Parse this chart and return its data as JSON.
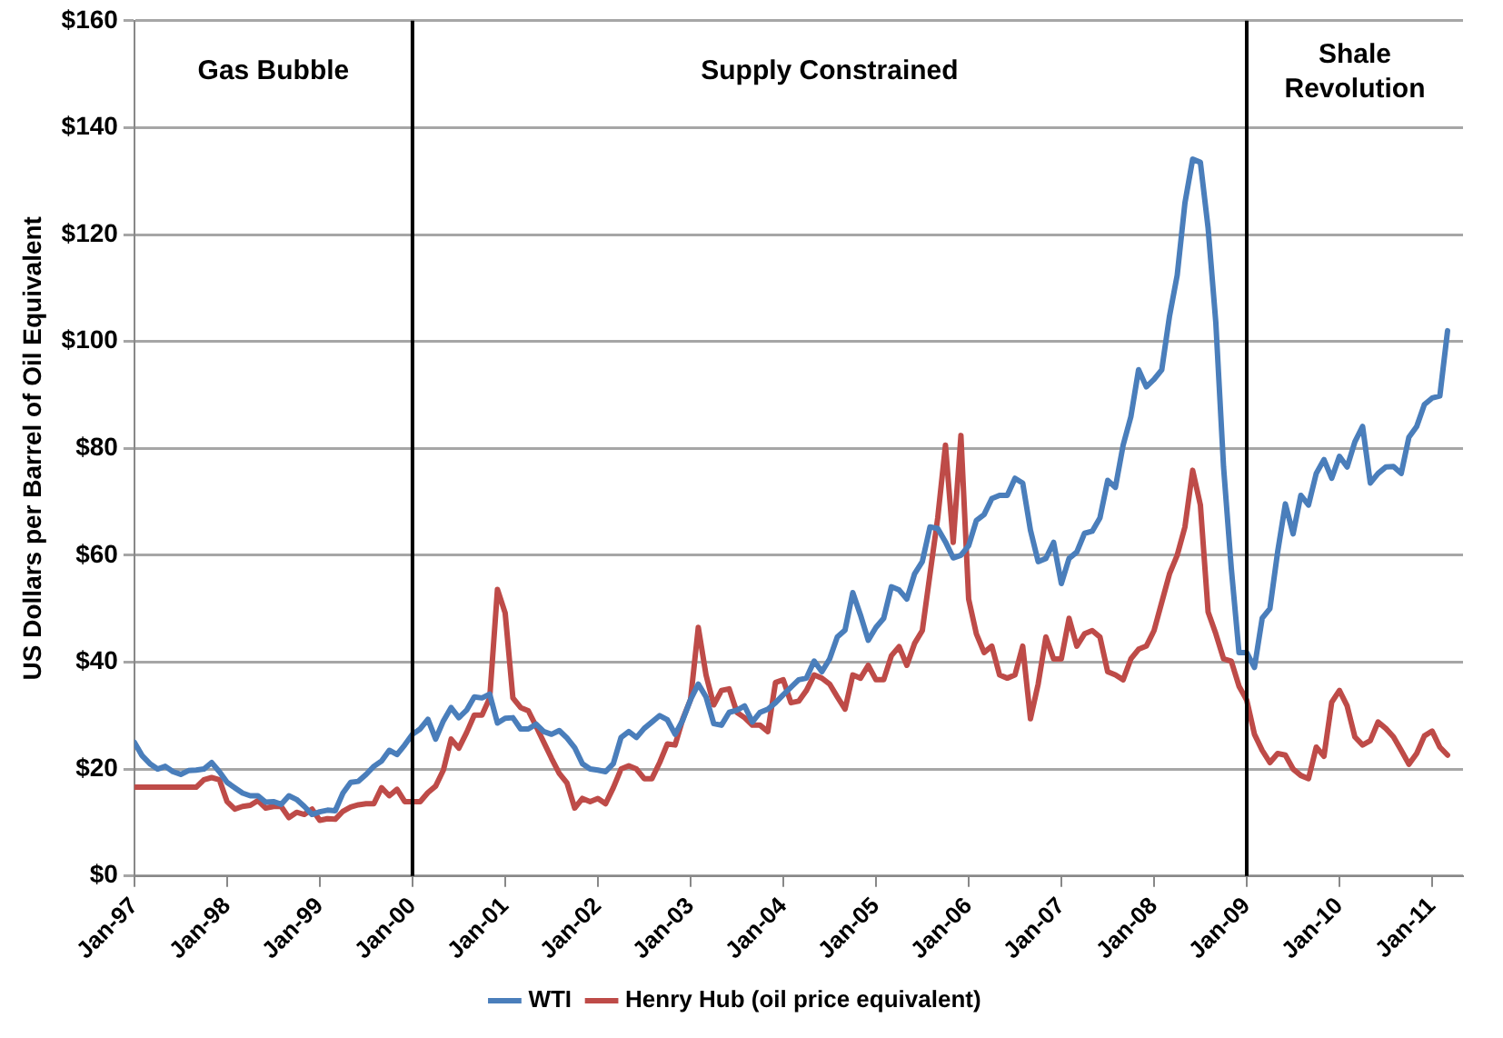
{
  "chart_data": {
    "type": "line",
    "ylabel": "US Dollars per Barrel of Oil Equivalent",
    "x": [
      "1997-01",
      "1997-02",
      "1997-03",
      "1997-04",
      "1997-05",
      "1997-06",
      "1997-07",
      "1997-08",
      "1997-09",
      "1997-10",
      "1997-11",
      "1997-12",
      "1998-01",
      "1998-02",
      "1998-03",
      "1998-04",
      "1998-05",
      "1998-06",
      "1998-07",
      "1998-08",
      "1998-09",
      "1998-10",
      "1998-11",
      "1998-12",
      "1999-01",
      "1999-02",
      "1999-03",
      "1999-04",
      "1999-05",
      "1999-06",
      "1999-07",
      "1999-08",
      "1999-09",
      "1999-10",
      "1999-11",
      "1999-12",
      "2000-01",
      "2000-02",
      "2000-03",
      "2000-04",
      "2000-05",
      "2000-06",
      "2000-07",
      "2000-08",
      "2000-09",
      "2000-10",
      "2000-11",
      "2000-12",
      "2001-01",
      "2001-02",
      "2001-03",
      "2001-04",
      "2001-05",
      "2001-06",
      "2001-07",
      "2001-08",
      "2001-09",
      "2001-10",
      "2001-11",
      "2001-12",
      "2002-01",
      "2002-02",
      "2002-03",
      "2002-04",
      "2002-05",
      "2002-06",
      "2002-07",
      "2002-08",
      "2002-09",
      "2002-10",
      "2002-11",
      "2002-12",
      "2003-01",
      "2003-02",
      "2003-03",
      "2003-04",
      "2003-05",
      "2003-06",
      "2003-07",
      "2003-08",
      "2003-09",
      "2003-10",
      "2003-11",
      "2003-12",
      "2004-01",
      "2004-02",
      "2004-03",
      "2004-04",
      "2004-05",
      "2004-06",
      "2004-07",
      "2004-08",
      "2004-09",
      "2004-10",
      "2004-11",
      "2004-12",
      "2005-01",
      "2005-02",
      "2005-03",
      "2005-04",
      "2005-05",
      "2005-06",
      "2005-07",
      "2005-08",
      "2005-09",
      "2005-10",
      "2005-11",
      "2005-12",
      "2006-01",
      "2006-02",
      "2006-03",
      "2006-04",
      "2006-05",
      "2006-06",
      "2006-07",
      "2006-08",
      "2006-09",
      "2006-10",
      "2006-11",
      "2006-12",
      "2007-01",
      "2007-02",
      "2007-03",
      "2007-04",
      "2007-05",
      "2007-06",
      "2007-07",
      "2007-08",
      "2007-09",
      "2007-10",
      "2007-11",
      "2007-12",
      "2008-01",
      "2008-02",
      "2008-03",
      "2008-04",
      "2008-05",
      "2008-06",
      "2008-07",
      "2008-08",
      "2008-09",
      "2008-10",
      "2008-11",
      "2008-12",
      "2009-01",
      "2009-02",
      "2009-03",
      "2009-04",
      "2009-05",
      "2009-06",
      "2009-07",
      "2009-08",
      "2009-09",
      "2009-10",
      "2009-11",
      "2009-12",
      "2010-01",
      "2010-02",
      "2010-03",
      "2010-04",
      "2010-05",
      "2010-06",
      "2010-07",
      "2010-08",
      "2010-09",
      "2010-10",
      "2010-11",
      "2010-12",
      "2011-01",
      "2011-02",
      "2011-03"
    ],
    "series": [
      {
        "name": "WTI",
        "color": "#4a7ebb",
        "values": [
          25,
          22.5,
          21,
          20,
          20.5,
          19.5,
          19,
          19.7,
          19.8,
          20,
          21.2,
          19.5,
          17.5,
          16.5,
          15.5,
          15,
          15,
          13.8,
          13.9,
          13.4,
          15,
          14.3,
          13,
          11.5,
          12,
          12.3,
          12.2,
          15.5,
          17.5,
          17.7,
          19,
          20.5,
          21.5,
          23.5,
          22.7,
          24.5,
          26.5,
          27.5,
          29.3,
          25.6,
          29,
          31.5,
          29.6,
          31,
          33.5,
          33.3,
          34,
          28.6,
          29.5,
          29.6,
          27.5,
          27.5,
          28.4,
          27,
          26.5,
          27.2,
          25.8,
          24,
          21,
          20,
          19.8,
          19.5,
          21,
          25.9,
          27,
          25.9,
          27.6,
          28.8,
          30,
          29.2,
          26.5,
          29.2,
          33,
          35.9,
          33.5,
          28.5,
          28.2,
          30.6,
          31,
          31.8,
          28.8,
          30.6,
          31.2,
          32.4,
          33.9,
          35.3,
          36.7,
          37,
          40.2,
          38.2,
          40.6,
          44.7,
          46,
          53,
          48.8,
          44.1,
          46.5,
          48.2,
          54.1,
          53.5,
          51.8,
          56.5,
          58.8,
          65.3,
          65,
          62.5,
          59.5,
          60,
          61.8,
          66.5,
          67.6,
          70.6,
          71.2,
          71.2,
          74.4,
          73.5,
          64.7,
          58.8,
          59.4,
          62.4,
          54.7,
          59.4,
          60.6,
          64.1,
          64.5,
          67,
          74,
          72.7,
          80.6,
          85.9,
          94.7,
          91.5,
          92.9,
          94.7,
          104.7,
          112.4,
          125.9,
          134.1,
          133.5,
          121.2,
          103.5,
          76.5,
          57.6,
          41.8,
          41.8,
          39,
          48.2,
          50,
          60.6,
          69.6,
          64,
          71.2,
          69.4,
          75.3,
          77.9,
          74.4,
          78.5,
          76.5,
          81.2,
          84.1,
          73.5,
          75.3,
          76.5,
          76.6,
          75.3,
          82.1,
          84.1,
          88.2,
          89.4,
          89.8,
          102
        ]
      },
      {
        "name": "Henry Hub (oil price equivalent)",
        "color": "#be4b48",
        "values": [
          16.6,
          16.6,
          16.6,
          16.6,
          16.6,
          16.6,
          16.6,
          16.6,
          16.6,
          18,
          18.4,
          18,
          13.9,
          12.5,
          13,
          13.2,
          14.1,
          12.7,
          13,
          13,
          10.9,
          11.9,
          11.5,
          12.5,
          10.4,
          10.7,
          10.6,
          12.1,
          12.9,
          13.3,
          13.5,
          13.5,
          16.5,
          15,
          16.2,
          13.9,
          13.9,
          13.9,
          15.6,
          16.8,
          19.8,
          25.6,
          23.9,
          26.8,
          30.1,
          30.1,
          33.3,
          53.6,
          49.2,
          33.3,
          31.5,
          30.9,
          28,
          25,
          22,
          19.2,
          17.4,
          12.7,
          14.5,
          13.9,
          14.5,
          13.5,
          16.5,
          20,
          20.6,
          20,
          18.2,
          18.2,
          21.2,
          24.7,
          24.5,
          29.4,
          33,
          46.5,
          37.6,
          32,
          34.7,
          35,
          30.6,
          29.6,
          28.2,
          28.2,
          27,
          36.2,
          36.7,
          32.4,
          32.7,
          34.7,
          37.6,
          37,
          35.9,
          33.5,
          31.2,
          37.6,
          37,
          39.4,
          36.7,
          36.7,
          41.2,
          42.9,
          39.4,
          43.5,
          45.9,
          56.5,
          67,
          80.6,
          62.4,
          82.4,
          51.8,
          45.3,
          41.8,
          43,
          37.6,
          37,
          37.6,
          43,
          29.4,
          35.9,
          44.7,
          40.6,
          40.6,
          48.2,
          43,
          45.3,
          45.9,
          44.7,
          38.2,
          37.6,
          36.7,
          40.6,
          42.4,
          43,
          45.9,
          51.2,
          56.5,
          60,
          65.3,
          75.9,
          69.4,
          49.4,
          45.3,
          40.6,
          40.2,
          35.5,
          32.9,
          26.5,
          23.5,
          21.2,
          22.9,
          22.6,
          20,
          18.8,
          18.2,
          24.1,
          22.4,
          32.5,
          34.7,
          31.8,
          26,
          24.5,
          25.3,
          28.8,
          27.6,
          26,
          23.5,
          20.9,
          22.9,
          26.2,
          27.1,
          24.1,
          22.6
        ]
      }
    ],
    "xlim": [
      "1997-01",
      "2011-05"
    ],
    "xticks": [
      {
        "value": "1997-01",
        "label": "Jan-97"
      },
      {
        "value": "1998-01",
        "label": "Jan-98"
      },
      {
        "value": "1999-01",
        "label": "Jan-99"
      },
      {
        "value": "2000-01",
        "label": "Jan-00"
      },
      {
        "value": "2001-01",
        "label": "Jan-01"
      },
      {
        "value": "2002-01",
        "label": "Jan-02"
      },
      {
        "value": "2003-01",
        "label": "Jan-03"
      },
      {
        "value": "2004-01",
        "label": "Jan-04"
      },
      {
        "value": "2005-01",
        "label": "Jan-05"
      },
      {
        "value": "2006-01",
        "label": "Jan-06"
      },
      {
        "value": "2007-01",
        "label": "Jan-07"
      },
      {
        "value": "2008-01",
        "label": "Jan-08"
      },
      {
        "value": "2009-01",
        "label": "Jan-09"
      },
      {
        "value": "2010-01",
        "label": "Jan-10"
      },
      {
        "value": "2011-01",
        "label": "Jan-11"
      }
    ],
    "ylim": [
      0,
      160
    ],
    "yticks": [
      {
        "value": 0,
        "label": "$0"
      },
      {
        "value": 20,
        "label": "$20"
      },
      {
        "value": 40,
        "label": "$40"
      },
      {
        "value": 60,
        "label": "$60"
      },
      {
        "value": 80,
        "label": "$80"
      },
      {
        "value": 100,
        "label": "$100"
      },
      {
        "value": 120,
        "label": "$120"
      },
      {
        "value": 140,
        "label": "$140"
      },
      {
        "value": 160,
        "label": "$160"
      }
    ],
    "ref_lines": [
      {
        "axis": "x",
        "value": "2000-01",
        "color": "#000000"
      },
      {
        "axis": "x",
        "value": "2009-01",
        "color": "#000000"
      }
    ],
    "annotations": [
      "Gas Bubble",
      "Supply Constrained",
      "Shale Revolution"
    ],
    "grid": "y",
    "legend": "bottom",
    "marker": "none",
    "line_style": "solid"
  }
}
